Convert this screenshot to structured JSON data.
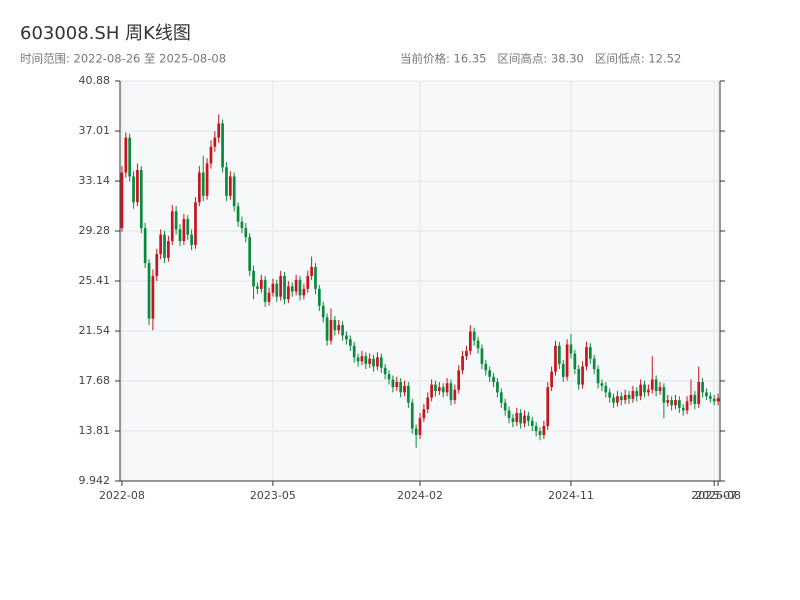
{
  "chart_data": {
    "type": "candlestick",
    "title": "603008.SH 周K线图",
    "subtitle_left": "时间范围: 2022-08-26 至 2025-08-08",
    "subtitle_right": "当前价格: 16.35   区间高点: 38.30   区间低点: 12.52",
    "up_color": "#c8141e",
    "down_color": "#0a8a3c",
    "grid": true,
    "ylim": [
      9.942,
      40.88
    ],
    "yticks": [
      9.942,
      13.81,
      17.68,
      21.54,
      25.41,
      29.28,
      33.14,
      37.01,
      40.88
    ],
    "categories": [
      "2022-08",
      null,
      null,
      null,
      null,
      null,
      null,
      null,
      null,
      null,
      null,
      null,
      null,
      null,
      null,
      null,
      null,
      null,
      null,
      null,
      null,
      null,
      null,
      null,
      null,
      null,
      null,
      null,
      null,
      null,
      null,
      null,
      null,
      null,
      null,
      null,
      null,
      null,
      null,
      "2023-05",
      null,
      null,
      null,
      null,
      null,
      null,
      null,
      null,
      null,
      null,
      null,
      null,
      null,
      null,
      null,
      null,
      null,
      null,
      null,
      null,
      null,
      null,
      null,
      null,
      null,
      null,
      null,
      null,
      null,
      null,
      null,
      null,
      null,
      null,
      null,
      null,
      null,
      "2024-02",
      null,
      null,
      null,
      null,
      null,
      null,
      null,
      null,
      null,
      null,
      null,
      null,
      null,
      null,
      null,
      null,
      null,
      null,
      null,
      null,
      null,
      null,
      null,
      null,
      null,
      null,
      null,
      null,
      null,
      null,
      null,
      null,
      null,
      null,
      null,
      null,
      null,
      null,
      "2024-11",
      null,
      null,
      null,
      null,
      null,
      null,
      null,
      null,
      null,
      null,
      null,
      null,
      null,
      null,
      null,
      null,
      null,
      null,
      null,
      null,
      null,
      null,
      null,
      null,
      null,
      null,
      null,
      null,
      null,
      null,
      null,
      null,
      null,
      null,
      null,
      null,
      "2025-07",
      "2025-08"
    ],
    "ohlc": [
      [
        29.5,
        34.3,
        29.2,
        33.8
      ],
      [
        33.8,
        36.9,
        33.4,
        36.5
      ],
      [
        36.5,
        36.8,
        33.1,
        33.5
      ],
      [
        33.5,
        33.9,
        31.0,
        31.5
      ],
      [
        31.5,
        34.5,
        31.2,
        34.0
      ],
      [
        34.0,
        34.3,
        29.1,
        29.5
      ],
      [
        29.5,
        29.9,
        26.4,
        26.8
      ],
      [
        26.8,
        27.1,
        22.0,
        22.5
      ],
      [
        22.5,
        26.3,
        21.6,
        25.8
      ],
      [
        25.8,
        27.9,
        25.4,
        27.5
      ],
      [
        27.5,
        29.4,
        27.1,
        29.0
      ],
      [
        29.0,
        29.3,
        26.8,
        27.2
      ],
      [
        27.2,
        28.9,
        26.9,
        28.5
      ],
      [
        28.5,
        31.3,
        28.2,
        30.8
      ],
      [
        30.8,
        31.2,
        29.0,
        29.4
      ],
      [
        29.4,
        29.8,
        28.1,
        28.5
      ],
      [
        28.5,
        30.6,
        28.2,
        30.2
      ],
      [
        30.2,
        30.5,
        28.6,
        29.0
      ],
      [
        29.0,
        29.4,
        27.8,
        28.2
      ],
      [
        28.2,
        31.9,
        27.9,
        31.5
      ],
      [
        31.5,
        34.3,
        31.2,
        33.8
      ],
      [
        33.8,
        35.1,
        31.6,
        32.0
      ],
      [
        32.0,
        34.9,
        31.7,
        34.5
      ],
      [
        34.5,
        36.3,
        34.1,
        35.8
      ],
      [
        35.8,
        37.0,
        35.4,
        36.5
      ],
      [
        36.5,
        38.3,
        36.1,
        37.6
      ],
      [
        37.6,
        37.9,
        33.8,
        34.2
      ],
      [
        34.2,
        34.6,
        31.6,
        32.0
      ],
      [
        32.0,
        33.9,
        31.7,
        33.5
      ],
      [
        33.5,
        33.8,
        30.8,
        31.2
      ],
      [
        31.2,
        31.5,
        29.6,
        30.0
      ],
      [
        30.0,
        30.4,
        29.1,
        29.5
      ],
      [
        29.5,
        29.9,
        28.4,
        28.8
      ],
      [
        28.8,
        29.1,
        25.8,
        26.2
      ],
      [
        26.2,
        26.6,
        24.0,
        25.0
      ],
      [
        25.0,
        25.3,
        24.4,
        24.8
      ],
      [
        24.8,
        25.9,
        24.5,
        25.5
      ],
      [
        25.5,
        25.8,
        23.4,
        23.8
      ],
      [
        23.8,
        24.9,
        23.5,
        24.5
      ],
      [
        24.5,
        25.6,
        24.2,
        25.2
      ],
      [
        25.2,
        25.5,
        23.8,
        24.2
      ],
      [
        24.2,
        26.2,
        23.9,
        25.8
      ],
      [
        25.8,
        26.1,
        23.6,
        24.0
      ],
      [
        24.0,
        25.4,
        23.7,
        25.0
      ],
      [
        25.0,
        25.3,
        24.2,
        24.6
      ],
      [
        24.6,
        25.9,
        24.3,
        25.5
      ],
      [
        25.5,
        25.8,
        23.9,
        24.3
      ],
      [
        24.3,
        25.2,
        24.0,
        24.8
      ],
      [
        24.8,
        26.2,
        24.5,
        25.8
      ],
      [
        25.8,
        27.3,
        25.5,
        26.5
      ],
      [
        26.5,
        26.8,
        24.4,
        24.8
      ],
      [
        24.8,
        25.1,
        23.1,
        23.5
      ],
      [
        23.5,
        23.8,
        22.2,
        22.6
      ],
      [
        22.6,
        22.9,
        20.4,
        20.8
      ],
      [
        20.8,
        23.3,
        20.5,
        22.4
      ],
      [
        22.4,
        22.7,
        21.2,
        21.6
      ],
      [
        21.6,
        22.4,
        21.3,
        22.0
      ],
      [
        22.0,
        22.3,
        20.8,
        21.2
      ],
      [
        21.2,
        21.5,
        20.5,
        20.9
      ],
      [
        20.9,
        21.2,
        20.0,
        20.4
      ],
      [
        20.4,
        20.7,
        19.1,
        19.5
      ],
      [
        19.5,
        19.8,
        18.8,
        19.2
      ],
      [
        19.2,
        20.0,
        18.9,
        19.6
      ],
      [
        19.6,
        19.9,
        18.6,
        19.0
      ],
      [
        19.0,
        19.8,
        18.7,
        19.4
      ],
      [
        19.4,
        19.7,
        18.4,
        18.8
      ],
      [
        18.8,
        19.9,
        18.5,
        19.5
      ],
      [
        19.5,
        19.8,
        18.3,
        18.7
      ],
      [
        18.7,
        19.0,
        17.8,
        18.2
      ],
      [
        18.2,
        18.5,
        17.4,
        17.8
      ],
      [
        17.8,
        18.1,
        16.8,
        17.2
      ],
      [
        17.2,
        18.0,
        16.9,
        17.6
      ],
      [
        17.6,
        17.9,
        16.4,
        16.8
      ],
      [
        16.8,
        17.7,
        16.5,
        17.3
      ],
      [
        17.3,
        17.6,
        15.6,
        16.0
      ],
      [
        16.0,
        16.3,
        13.6,
        14.0
      ],
      [
        14.0,
        14.3,
        12.52,
        13.5
      ],
      [
        13.5,
        15.2,
        13.2,
        14.8
      ],
      [
        14.8,
        15.9,
        14.5,
        15.5
      ],
      [
        15.5,
        16.8,
        15.2,
        16.4
      ],
      [
        16.4,
        17.8,
        16.1,
        17.4
      ],
      [
        17.4,
        17.7,
        16.5,
        16.9
      ],
      [
        16.9,
        17.6,
        16.6,
        17.2
      ],
      [
        17.2,
        17.5,
        16.4,
        16.8
      ],
      [
        16.8,
        17.9,
        16.5,
        17.5
      ],
      [
        17.5,
        17.8,
        15.8,
        16.2
      ],
      [
        16.2,
        17.4,
        15.9,
        17.0
      ],
      [
        17.0,
        18.9,
        16.7,
        18.5
      ],
      [
        18.5,
        20.0,
        18.2,
        19.6
      ],
      [
        19.6,
        20.4,
        19.3,
        20.0
      ],
      [
        20.0,
        22.0,
        19.7,
        21.5
      ],
      [
        21.5,
        21.8,
        20.4,
        20.8
      ],
      [
        20.8,
        21.1,
        19.8,
        20.2
      ],
      [
        20.2,
        20.5,
        18.6,
        19.0
      ],
      [
        19.0,
        19.3,
        18.1,
        18.5
      ],
      [
        18.5,
        18.8,
        17.6,
        18.0
      ],
      [
        18.0,
        18.3,
        17.2,
        17.6
      ],
      [
        17.6,
        17.9,
        16.4,
        16.8
      ],
      [
        16.8,
        17.1,
        15.6,
        16.0
      ],
      [
        16.0,
        16.3,
        15.0,
        15.4
      ],
      [
        15.4,
        15.7,
        14.4,
        14.8
      ],
      [
        14.8,
        15.1,
        14.1,
        14.5
      ],
      [
        14.5,
        15.6,
        14.2,
        15.2
      ],
      [
        15.2,
        15.5,
        14.0,
        14.4
      ],
      [
        14.4,
        15.4,
        14.1,
        15.0
      ],
      [
        15.0,
        15.3,
        14.2,
        14.6
      ],
      [
        14.6,
        14.9,
        13.8,
        14.2
      ],
      [
        14.2,
        14.5,
        13.4,
        13.8
      ],
      [
        13.8,
        14.1,
        13.1,
        13.5
      ],
      [
        13.5,
        14.6,
        13.2,
        14.2
      ],
      [
        14.2,
        17.6,
        13.9,
        17.2
      ],
      [
        17.2,
        18.8,
        16.9,
        18.4
      ],
      [
        18.4,
        20.8,
        18.1,
        20.4
      ],
      [
        20.4,
        20.7,
        18.6,
        19.0
      ],
      [
        19.0,
        19.3,
        17.6,
        18.0
      ],
      [
        18.0,
        20.9,
        17.7,
        20.5
      ],
      [
        20.5,
        21.3,
        19.4,
        19.8
      ],
      [
        19.8,
        20.1,
        18.2,
        18.6
      ],
      [
        18.6,
        18.9,
        17.0,
        17.4
      ],
      [
        17.4,
        19.2,
        17.1,
        18.8
      ],
      [
        18.8,
        20.7,
        18.5,
        20.3
      ],
      [
        20.3,
        20.6,
        19.0,
        19.4
      ],
      [
        19.4,
        19.7,
        18.2,
        18.6
      ],
      [
        18.6,
        18.9,
        17.1,
        17.5
      ],
      [
        17.5,
        17.8,
        16.9,
        17.3
      ],
      [
        17.3,
        17.6,
        16.4,
        16.8
      ],
      [
        16.8,
        17.1,
        16.0,
        16.4
      ],
      [
        16.4,
        16.7,
        15.6,
        16.0
      ],
      [
        16.0,
        16.9,
        15.7,
        16.5
      ],
      [
        16.5,
        16.8,
        15.8,
        16.2
      ],
      [
        16.2,
        17.0,
        15.9,
        16.6
      ],
      [
        16.6,
        16.9,
        15.9,
        16.3
      ],
      [
        16.3,
        17.3,
        16.0,
        16.9
      ],
      [
        16.9,
        17.2,
        16.1,
        16.5
      ],
      [
        16.5,
        17.8,
        16.2,
        17.4
      ],
      [
        17.4,
        17.7,
        16.4,
        16.8
      ],
      [
        16.8,
        17.4,
        16.5,
        17.0
      ],
      [
        17.0,
        19.6,
        16.7,
        17.8
      ],
      [
        17.8,
        18.1,
        16.5,
        16.9
      ],
      [
        16.9,
        17.6,
        16.6,
        17.2
      ],
      [
        17.2,
        17.5,
        14.8,
        16.0
      ],
      [
        16.0,
        16.6,
        15.7,
        16.2
      ],
      [
        16.2,
        16.5,
        15.4,
        15.8
      ],
      [
        15.8,
        16.6,
        15.5,
        16.2
      ],
      [
        16.2,
        16.5,
        15.2,
        15.6
      ],
      [
        15.6,
        15.9,
        15.0,
        15.4
      ],
      [
        15.4,
        16.5,
        15.1,
        16.1
      ],
      [
        16.1,
        17.8,
        15.8,
        16.6
      ],
      [
        16.6,
        16.9,
        15.5,
        15.9
      ],
      [
        15.9,
        18.8,
        15.6,
        17.6
      ],
      [
        17.6,
        17.9,
        16.4,
        16.8
      ],
      [
        16.8,
        17.1,
        16.2,
        16.5
      ],
      [
        16.5,
        16.8,
        16.0,
        16.3
      ],
      [
        16.3,
        16.6,
        15.8,
        16.1
      ],
      [
        16.1,
        16.7,
        15.8,
        16.35
      ]
    ]
  }
}
